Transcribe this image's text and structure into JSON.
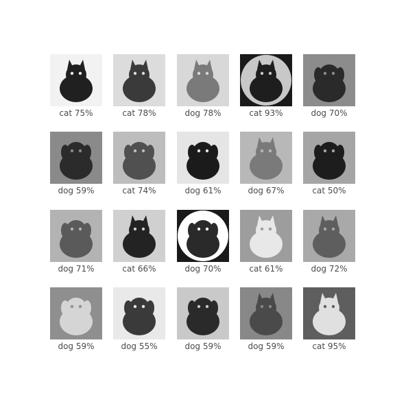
{
  "images": [
    {
      "label": "cat 75%",
      "subject": "cat",
      "tone": [
        "#f2f2f2",
        "#202020"
      ]
    },
    {
      "label": "cat 78%",
      "subject": "cat",
      "tone": [
        "#dcdcdc",
        "#3a3a3a"
      ]
    },
    {
      "label": "dog 78%",
      "subject": "cat",
      "tone": [
        "#d8d8d8",
        "#7a7a7a"
      ]
    },
    {
      "label": "cat 93%",
      "subject": "cat",
      "tone": [
        "#c8c8c8",
        "#1e1e1e"
      ],
      "round": true
    },
    {
      "label": "dog 70%",
      "subject": "dog",
      "tone": [
        "#8c8c8c",
        "#2a2a2a"
      ]
    },
    {
      "label": "dog 59%",
      "subject": "dog",
      "tone": [
        "#8a8a8a",
        "#2b2b2b"
      ]
    },
    {
      "label": "cat 74%",
      "subject": "dog",
      "tone": [
        "#bdbdbd",
        "#505050"
      ]
    },
    {
      "label": "dog 61%",
      "subject": "dog",
      "tone": [
        "#e5e5e5",
        "#1b1b1b"
      ]
    },
    {
      "label": "dog 67%",
      "subject": "cat",
      "tone": [
        "#b8b8b8",
        "#7a7a7a"
      ]
    },
    {
      "label": "cat 50%",
      "subject": "dog",
      "tone": [
        "#a5a5a5",
        "#1d1d1d"
      ]
    },
    {
      "label": "dog 71%",
      "subject": "dog",
      "tone": [
        "#b3b3b3",
        "#5a5a5a"
      ]
    },
    {
      "label": "cat 66%",
      "subject": "cat",
      "tone": [
        "#d0d0d0",
        "#232323"
      ]
    },
    {
      "label": "dog 70%",
      "subject": "dog",
      "tone": [
        "#ffffff",
        "#2a2a2a"
      ],
      "round": true
    },
    {
      "label": "cat 61%",
      "subject": "cat",
      "tone": [
        "#9d9d9d",
        "#e8e8e8"
      ]
    },
    {
      "label": "dog 72%",
      "subject": "cat",
      "tone": [
        "#a9a9a9",
        "#5e5e5e"
      ]
    },
    {
      "label": "dog 59%",
      "subject": "dog",
      "tone": [
        "#8f8f8f",
        "#d5d5d5"
      ]
    },
    {
      "label": "dog 55%",
      "subject": "dog",
      "tone": [
        "#e9e9e9",
        "#3a3a3a"
      ]
    },
    {
      "label": "dog 59%",
      "subject": "dog",
      "tone": [
        "#c9c9c9",
        "#2a2a2a"
      ]
    },
    {
      "label": "dog 59%",
      "subject": "cat",
      "tone": [
        "#888888",
        "#4a4a4a"
      ]
    },
    {
      "label": "cat 95%",
      "subject": "cat",
      "tone": [
        "#5e5e5e",
        "#e0e0e0"
      ]
    }
  ]
}
